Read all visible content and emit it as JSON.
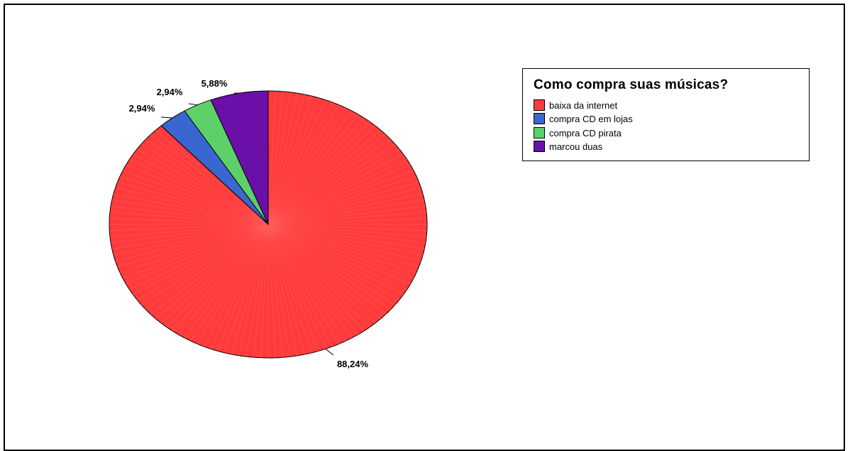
{
  "chart_data": {
    "type": "pie",
    "title": "Como compra suas músicas?",
    "legend_position": "top-right",
    "categories": [
      "baixa da internet",
      "compra CD em lojas",
      "compra CD pirata",
      "marcou duas"
    ],
    "values": [
      88.24,
      2.94,
      2.94,
      5.88
    ],
    "data_labels": [
      "88,24%",
      "2,94%",
      "2,94%",
      "5,88%"
    ],
    "colors": [
      "#ff3b3b",
      "#3a66d1",
      "#5ed06a",
      "#6a0fa8"
    ]
  }
}
